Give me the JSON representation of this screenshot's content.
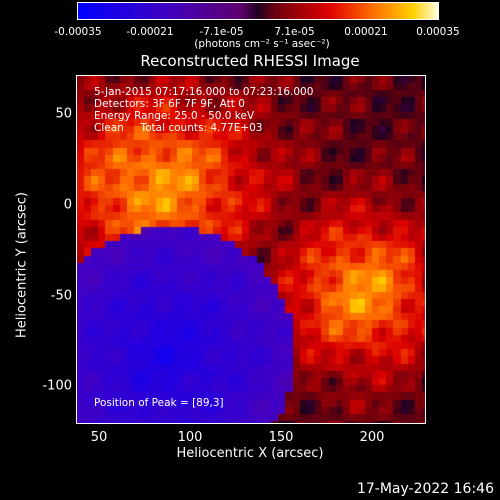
{
  "colorbar": {
    "ticks": [
      {
        "label": "-0.00035",
        "value": -0.00035
      },
      {
        "label": "-0.00021",
        "value": -0.00021
      },
      {
        "label": "-7.1e-05",
        "value": -7.1e-05
      },
      {
        "label": "7.1e-05",
        "value": 7.1e-05
      },
      {
        "label": "0.00021",
        "value": 0.00021
      },
      {
        "label": "0.00035",
        "value": 0.00035
      }
    ],
    "unit_label": "(photons cm⁻² s⁻¹ asec⁻²)",
    "range": [
      -0.00035,
      0.00035
    ]
  },
  "plot": {
    "title": "Reconstructed RHESSI Image",
    "x_label": "Heliocentric X (arcsec)",
    "y_label": "Heliocentric Y (arcsec)",
    "x_ticks": [
      "50",
      "100",
      "150",
      "200"
    ],
    "y_ticks": [
      "50",
      "0",
      "-50",
      "-100"
    ]
  },
  "annotations": {
    "time_range": "5-Jan-2015 07:17:16.000 to 07:23:16.000",
    "detectors": "Detectors: 3F 6F 7F 9F, Att 0",
    "energy_range": "Energy Range: 25.0 - 50.0 keV",
    "clean": "Clean     Total counts: 4.77E+03",
    "peak_position": "Position of Peak = [89,3]"
  },
  "timestamp": "17-May-2022 16:46",
  "chart_data": {
    "type": "heatmap",
    "title": "Reconstructed RHESSI Image",
    "xlabel": "Heliocentric X (arcsec)",
    "ylabel": "Heliocentric Y (arcsec)",
    "xlim": [
      39,
      229
    ],
    "ylim": [
      -121,
      69
    ],
    "x_ticks": [
      50,
      100,
      150,
      200
    ],
    "y_ticks": [
      50,
      0,
      -50,
      -100
    ],
    "colorbar_range": [
      -0.00035,
      0.00035
    ],
    "colorbar_ticks": [
      -0.00035,
      -0.00021,
      -7.1e-05,
      7.1e-05,
      0.00021,
      0.00035
    ],
    "colormap": "blue-purple-red-yellow-white",
    "peak_position": [
      89,
      3
    ],
    "grid": false
  }
}
